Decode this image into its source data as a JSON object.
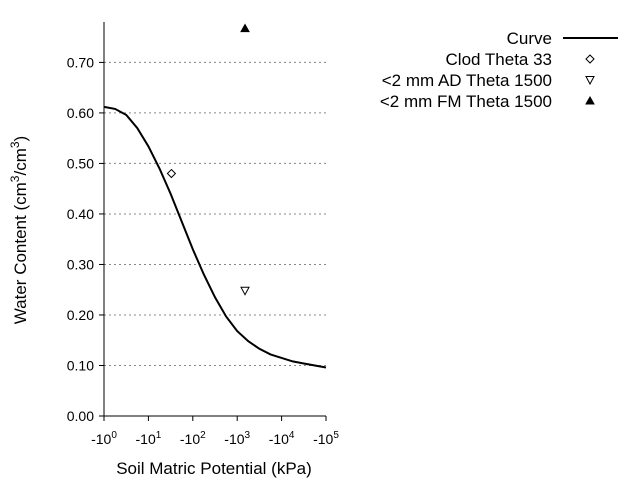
{
  "chart_data": {
    "type": "scatter",
    "xlabel": "Soil Matric Potential (kPa)",
    "ylabel": {
      "prefix": "Water Content (cm",
      "sup1": "3",
      "mid": "/cm",
      "sup2": "3",
      "suffix": ")"
    },
    "x_scale": "log",
    "xlim": [
      1,
      100000
    ],
    "ylim": [
      0,
      0.78
    ],
    "grid": {
      "y_major": true,
      "style": "dotted"
    },
    "legend_position": "top-right, outside plot",
    "y_ticks": [
      {
        "value": 0.0,
        "label": "0.00"
      },
      {
        "value": 0.1,
        "label": "0.10"
      },
      {
        "value": 0.2,
        "label": "0.20"
      },
      {
        "value": 0.3,
        "label": "0.30"
      },
      {
        "value": 0.4,
        "label": "0.40"
      },
      {
        "value": 0.5,
        "label": "0.50"
      },
      {
        "value": 0.6,
        "label": "0.60"
      },
      {
        "value": 0.7,
        "label": "0.70"
      }
    ],
    "x_ticks": [
      {
        "value": 1,
        "label_base": "-10",
        "label_exp": "0"
      },
      {
        "value": 10,
        "label_base": "-10",
        "label_exp": "1"
      },
      {
        "value": 100,
        "label_base": "-10",
        "label_exp": "2"
      },
      {
        "value": 1000,
        "label_base": "-10",
        "label_exp": "3"
      },
      {
        "value": 10000,
        "label_base": "-10",
        "label_exp": "4"
      },
      {
        "value": 100000,
        "label_base": "-10",
        "label_exp": "5"
      }
    ],
    "series": [
      {
        "name": "Curve",
        "kind": "line",
        "color": "#000000",
        "points": [
          [
            1,
            0.612
          ],
          [
            1.78,
            0.608
          ],
          [
            3.16,
            0.596
          ],
          [
            5.62,
            0.57
          ],
          [
            10,
            0.534
          ],
          [
            17.8,
            0.49
          ],
          [
            31.6,
            0.44
          ],
          [
            56.2,
            0.385
          ],
          [
            100,
            0.33
          ],
          [
            178,
            0.28
          ],
          [
            316,
            0.235
          ],
          [
            562,
            0.197
          ],
          [
            1000,
            0.168
          ],
          [
            1778,
            0.148
          ],
          [
            3162,
            0.133
          ],
          [
            5623,
            0.122
          ],
          [
            10000,
            0.115
          ],
          [
            17783,
            0.108
          ],
          [
            31623,
            0.104
          ],
          [
            56234,
            0.1
          ],
          [
            100000,
            0.096
          ]
        ]
      },
      {
        "name": "Clod Theta 33",
        "kind": "scatter",
        "marker": "diamond-open",
        "points": [
          [
            33,
            0.48
          ]
        ]
      },
      {
        "name": "<2 mm AD Theta 1500",
        "kind": "scatter",
        "marker": "triangle-down-open",
        "points": [
          [
            1500,
            0.248
          ]
        ]
      },
      {
        "name": "<2 mm FM Theta 1500",
        "kind": "scatter",
        "marker": "triangle-up-filled",
        "points": [
          [
            1500,
            0.767
          ]
        ]
      }
    ]
  }
}
